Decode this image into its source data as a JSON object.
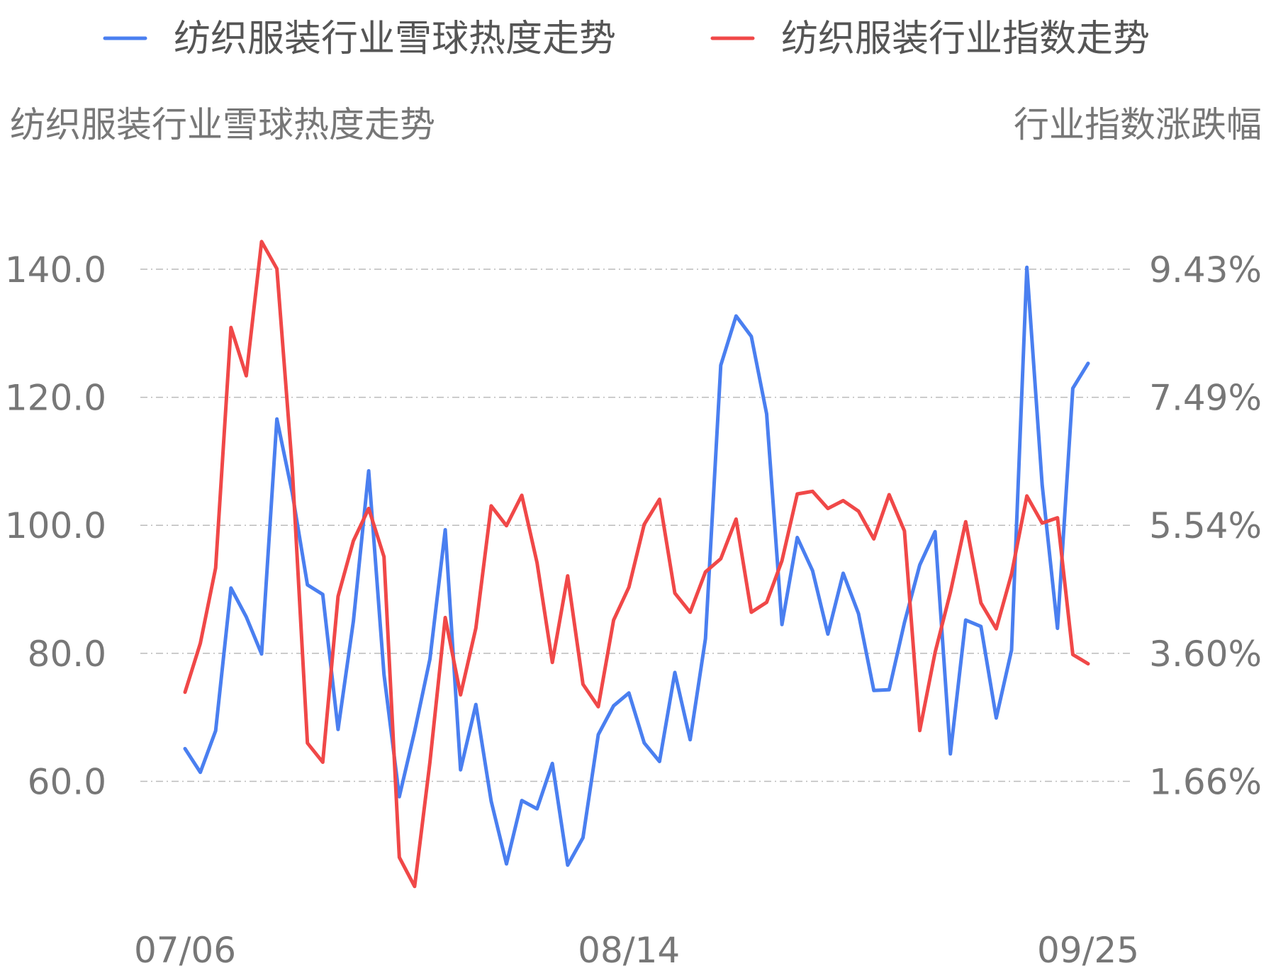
{
  "chart_data": {
    "type": "line",
    "legend_position": "top",
    "grid": true,
    "left_axis": {
      "title": "纺织服装行业雪球热度走势",
      "ticks": [
        "60.0",
        "80.0",
        "100.0",
        "120.0",
        "140.0"
      ],
      "ylim": [
        40.9,
        156.6
      ]
    },
    "right_axis": {
      "title": "行业指数涨跌幅",
      "ticks": [
        "1.66%",
        "3.60%",
        "5.54%",
        "7.49%",
        "9.43%"
      ],
      "ylim": [
        -0.59,
        10.62
      ]
    },
    "x_ticks": [
      {
        "label": "07/06",
        "index": 0
      },
      {
        "label": "08/14",
        "index": 29
      },
      {
        "label": "09/25",
        "index": 59
      }
    ],
    "point_count": 60,
    "series": [
      {
        "name": "纺织服装行业雪球热度走势",
        "axis": "left",
        "color": "#4a7ff0",
        "values": [
          65.1,
          61.4,
          67.9,
          90.2,
          85.7,
          79.9,
          116.6,
          105.1,
          90.7,
          89.2,
          68.1,
          85.0,
          108.5,
          76.7,
          57.6,
          67.8,
          79.1,
          99.3,
          61.8,
          72.0,
          56.9,
          47.1,
          57.0,
          55.7,
          62.8,
          46.9,
          51.2,
          67.3,
          71.8,
          73.8,
          66.0,
          63.1,
          77.0,
          66.5,
          82.3,
          125.0,
          132.7,
          129.5,
          117.4,
          84.5,
          98.1,
          92.9,
          83.0,
          92.5,
          86.2,
          74.2,
          74.3,
          84.8,
          93.8,
          99.0,
          64.3,
          85.2,
          84.2,
          69.9,
          80.5,
          140.3,
          106.3,
          83.9,
          121.4,
          125.3
        ]
      },
      {
        "name": "纺织服装行业指数走势",
        "axis": "right",
        "color": "#f04848",
        "values": [
          2.61,
          3.35,
          4.49,
          8.13,
          7.4,
          9.43,
          9.02,
          6.01,
          1.84,
          1.55,
          4.06,
          4.9,
          5.39,
          4.66,
          0.11,
          -0.33,
          1.55,
          3.74,
          2.57,
          3.58,
          5.43,
          5.13,
          5.59,
          4.57,
          3.06,
          4.37,
          2.73,
          2.39,
          3.7,
          4.2,
          5.15,
          5.53,
          4.11,
          3.82,
          4.43,
          4.63,
          5.23,
          3.82,
          3.97,
          4.6,
          5.61,
          5.65,
          5.39,
          5.51,
          5.35,
          4.93,
          5.6,
          5.05,
          2.03,
          3.21,
          4.12,
          5.19,
          3.96,
          3.57,
          4.4,
          5.58,
          5.17,
          5.25,
          3.18,
          3.04
        ]
      }
    ]
  }
}
